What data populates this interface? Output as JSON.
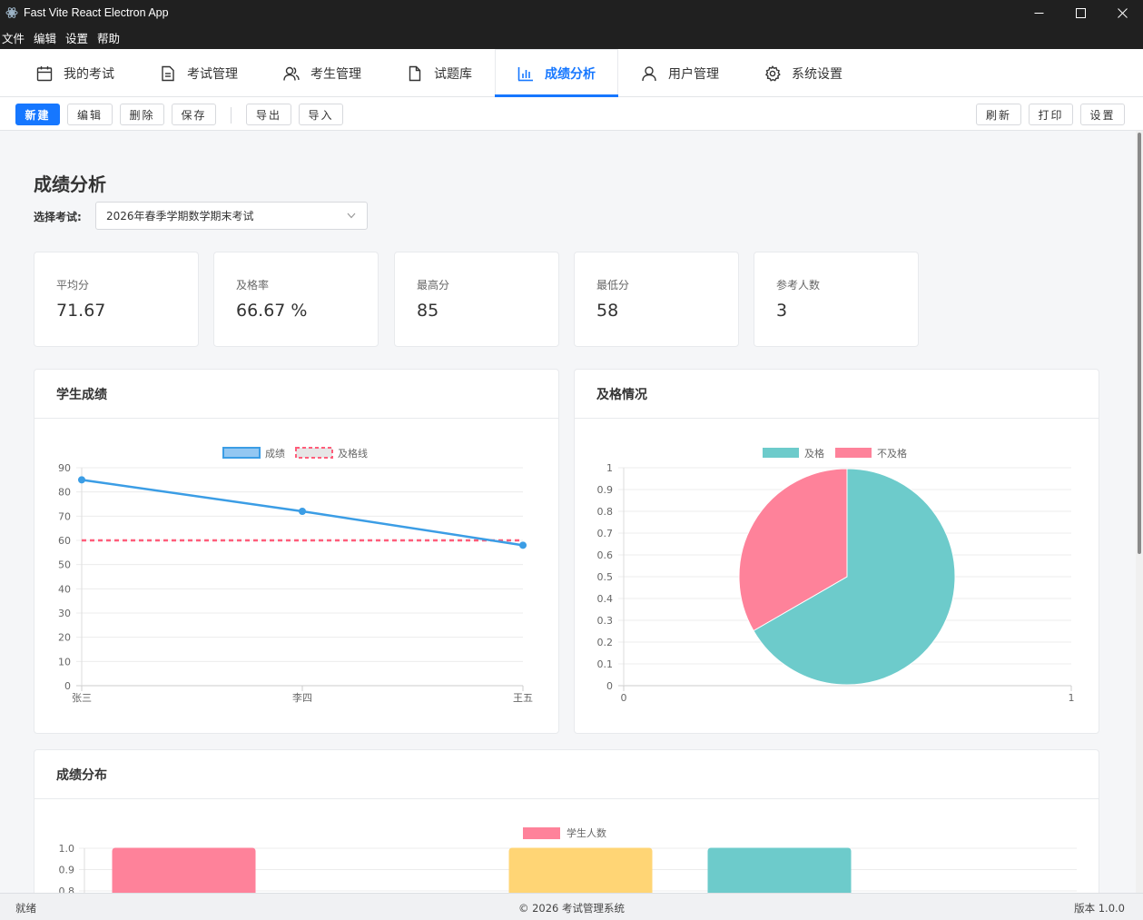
{
  "window": {
    "title": "Fast Vite React Electron App"
  },
  "menu": [
    "文件",
    "编辑",
    "设置",
    "帮助"
  ],
  "nav": {
    "tabs": [
      {
        "label": "我的考试",
        "icon": "calendar-icon",
        "active": false
      },
      {
        "label": "考试管理",
        "icon": "document-icon",
        "active": false
      },
      {
        "label": "考生管理",
        "icon": "users-icon",
        "active": false
      },
      {
        "label": "试题库",
        "icon": "file-icon",
        "active": false
      },
      {
        "label": "成绩分析",
        "icon": "bar-chart-icon",
        "active": true
      },
      {
        "label": "用户管理",
        "icon": "user-icon",
        "active": false
      },
      {
        "label": "系统设置",
        "icon": "gear-icon",
        "active": false
      }
    ]
  },
  "toolbar": {
    "left": [
      "新建",
      "编辑",
      "删除",
      "保存",
      "导出",
      "导入"
    ],
    "right": [
      "刷新",
      "打印",
      "设置"
    ]
  },
  "page": {
    "title": "成绩分析",
    "exam_label": "选择考试:",
    "exam_selected": "2026年春季学期数学期末考试"
  },
  "stats": [
    {
      "label": "平均分",
      "value": "71.67"
    },
    {
      "label": "及格率",
      "value": "66.67 %"
    },
    {
      "label": "最高分",
      "value": "85"
    },
    {
      "label": "最低分",
      "value": "58"
    },
    {
      "label": "参考人数",
      "value": "3"
    }
  ],
  "panels": {
    "scores": "学生成绩",
    "pass": "及格情况",
    "distribution": "成绩分布"
  },
  "chart_data": [
    {
      "type": "line",
      "title": "学生成绩",
      "categories": [
        "张三",
        "李四",
        "王五"
      ],
      "series": [
        {
          "name": "成绩",
          "values": [
            85,
            72,
            58
          ],
          "color": "#3b9de5"
        },
        {
          "name": "及格线",
          "values": [
            60,
            60,
            60
          ],
          "color": "#ff5d7a",
          "dashed": true
        }
      ],
      "ylim": [
        0,
        90
      ],
      "yticks": [
        0,
        10,
        20,
        30,
        40,
        50,
        60,
        70,
        80,
        90
      ]
    },
    {
      "type": "pie",
      "title": "及格情况",
      "labels": [
        "及格",
        "不及格"
      ],
      "values": [
        2,
        1
      ],
      "colors": [
        "#6dcbcb",
        "#fe829a"
      ],
      "yticks": [
        "0",
        "0.1",
        "0.2",
        "0.3",
        "0.4",
        "0.5",
        "0.6",
        "0.7",
        "0.8",
        "0.9",
        "1"
      ],
      "xticks": [
        "0",
        "1"
      ]
    },
    {
      "type": "bar",
      "title": "成绩分布",
      "series": [
        {
          "name": "学生人数",
          "color": "#fe829a"
        }
      ],
      "bars": [
        {
          "value": 1,
          "color": "#fe829a"
        },
        {
          "value": 1,
          "color": "#ffd575"
        },
        {
          "value": 1,
          "color": "#6dcbcb"
        }
      ],
      "yticks_visible": [
        "1.0",
        "0.9",
        "0.8"
      ]
    }
  ],
  "status": {
    "left": "就绪",
    "center": "© 2026 考试管理系统",
    "right": "版本 1.0.0"
  }
}
